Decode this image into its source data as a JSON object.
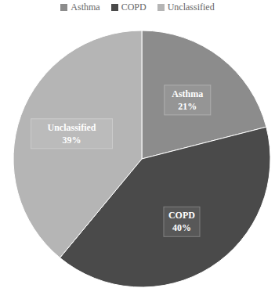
{
  "chart_data": {
    "type": "pie",
    "categories": [
      "Asthma",
      "COPD",
      "Unclassified"
    ],
    "values": [
      21,
      40,
      39
    ],
    "value_labels": [
      "21%",
      "40%",
      "39%"
    ],
    "colors": [
      "#8c8c8c",
      "#4a4a4a",
      "#b5b5b5"
    ],
    "data_labels": true,
    "legend": "top"
  }
}
